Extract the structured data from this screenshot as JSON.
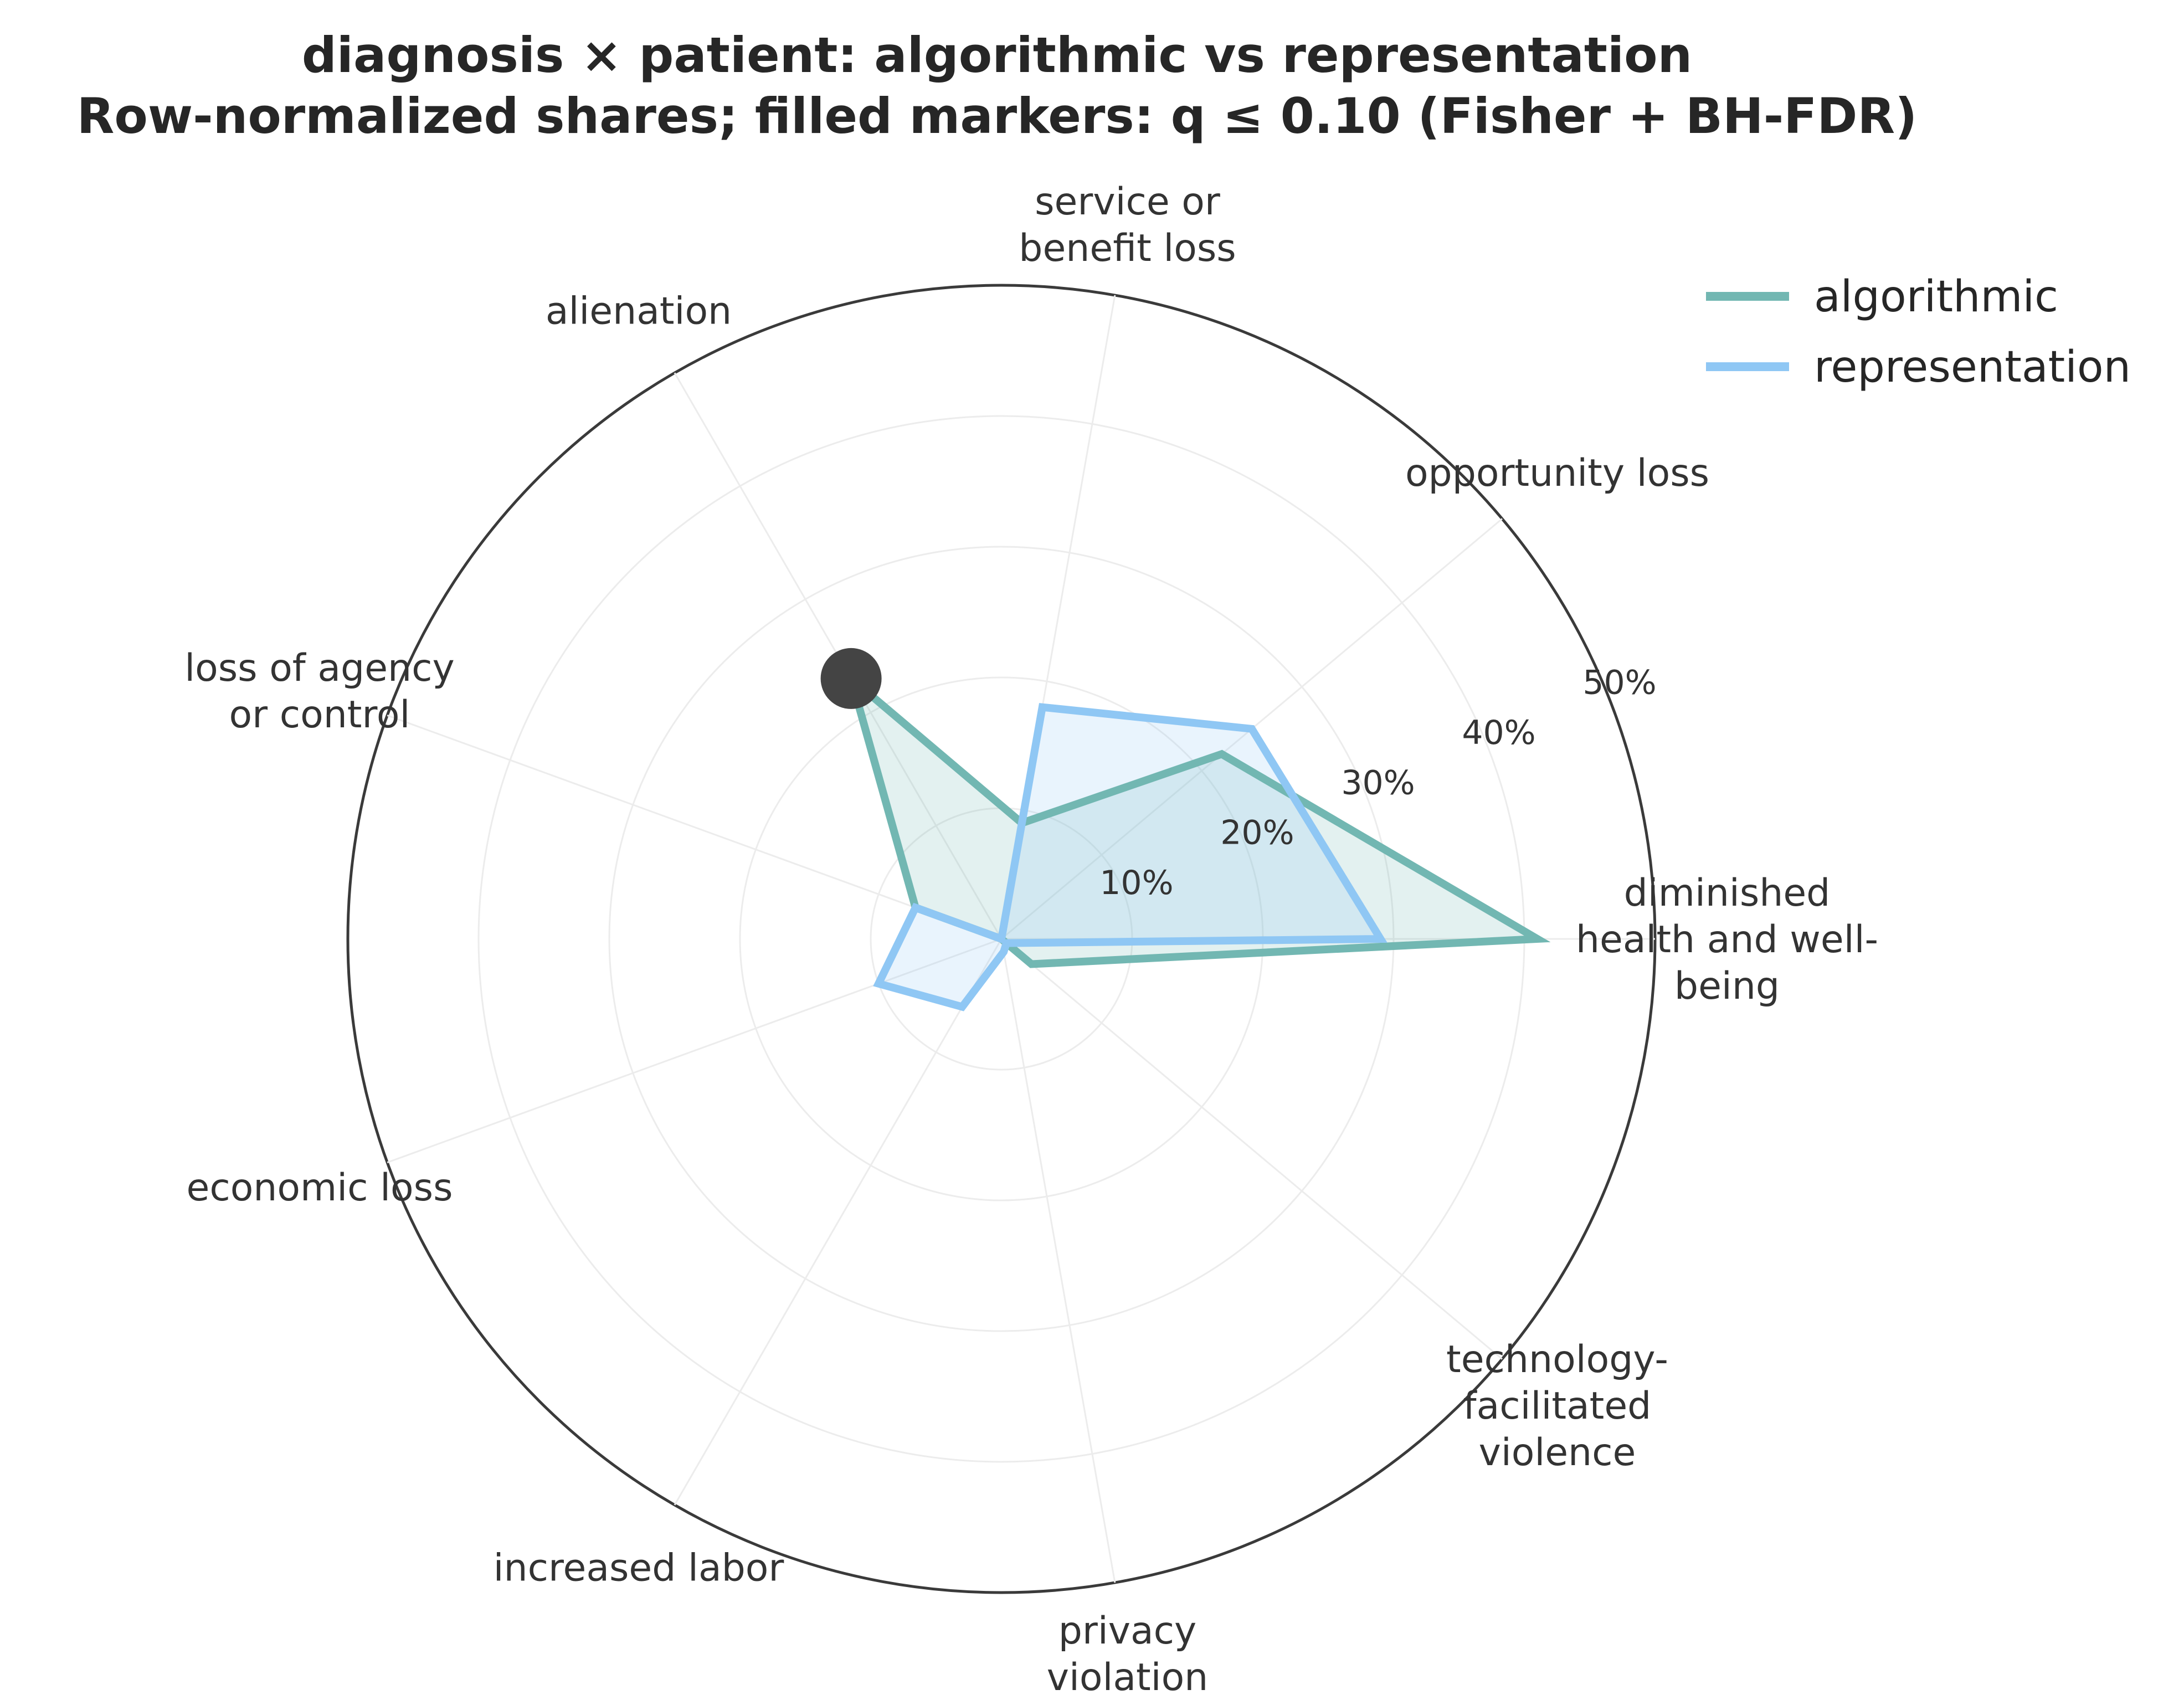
{
  "chart_data": {
    "type": "radar",
    "title_lines": [
      "diagnosis × patient: algorithmic vs representation",
      "Row-normalized shares; filled markers: q ≤ 0.10 (Fisher + BH-FDR)"
    ],
    "categories": [
      [
        "diminished",
        "health and well-",
        "being"
      ],
      [
        "opportunity loss"
      ],
      [
        "service or",
        "benefit loss"
      ],
      [
        "alienation"
      ],
      [
        "loss of agency",
        "or control"
      ],
      [
        "economic loss"
      ],
      [
        "increased labor"
      ],
      [
        "privacy",
        "violation"
      ],
      [
        "technology-",
        "facilitated",
        "violence"
      ]
    ],
    "rmax": 50,
    "ticks": [
      10,
      20,
      30,
      40,
      50
    ],
    "tick_labels": [
      "10%",
      "20%",
      "30%",
      "40%",
      "50%"
    ],
    "series": [
      {
        "name": "algorithmic",
        "color": "#72b7b2",
        "values": [
          41,
          22,
          9,
          23,
          7,
          0,
          0,
          0,
          3
        ],
        "significant": [
          false,
          false,
          false,
          true,
          false,
          false,
          false,
          false,
          false
        ]
      },
      {
        "name": "representation",
        "color": "#8fc7f4",
        "values": [
          29,
          25,
          18,
          0,
          7,
          10,
          6,
          1,
          0.5
        ],
        "significant": [
          false,
          false,
          false,
          false,
          false,
          false,
          false,
          false,
          false
        ]
      }
    ],
    "marker_color": "#444444",
    "legend_position": "top-right"
  }
}
